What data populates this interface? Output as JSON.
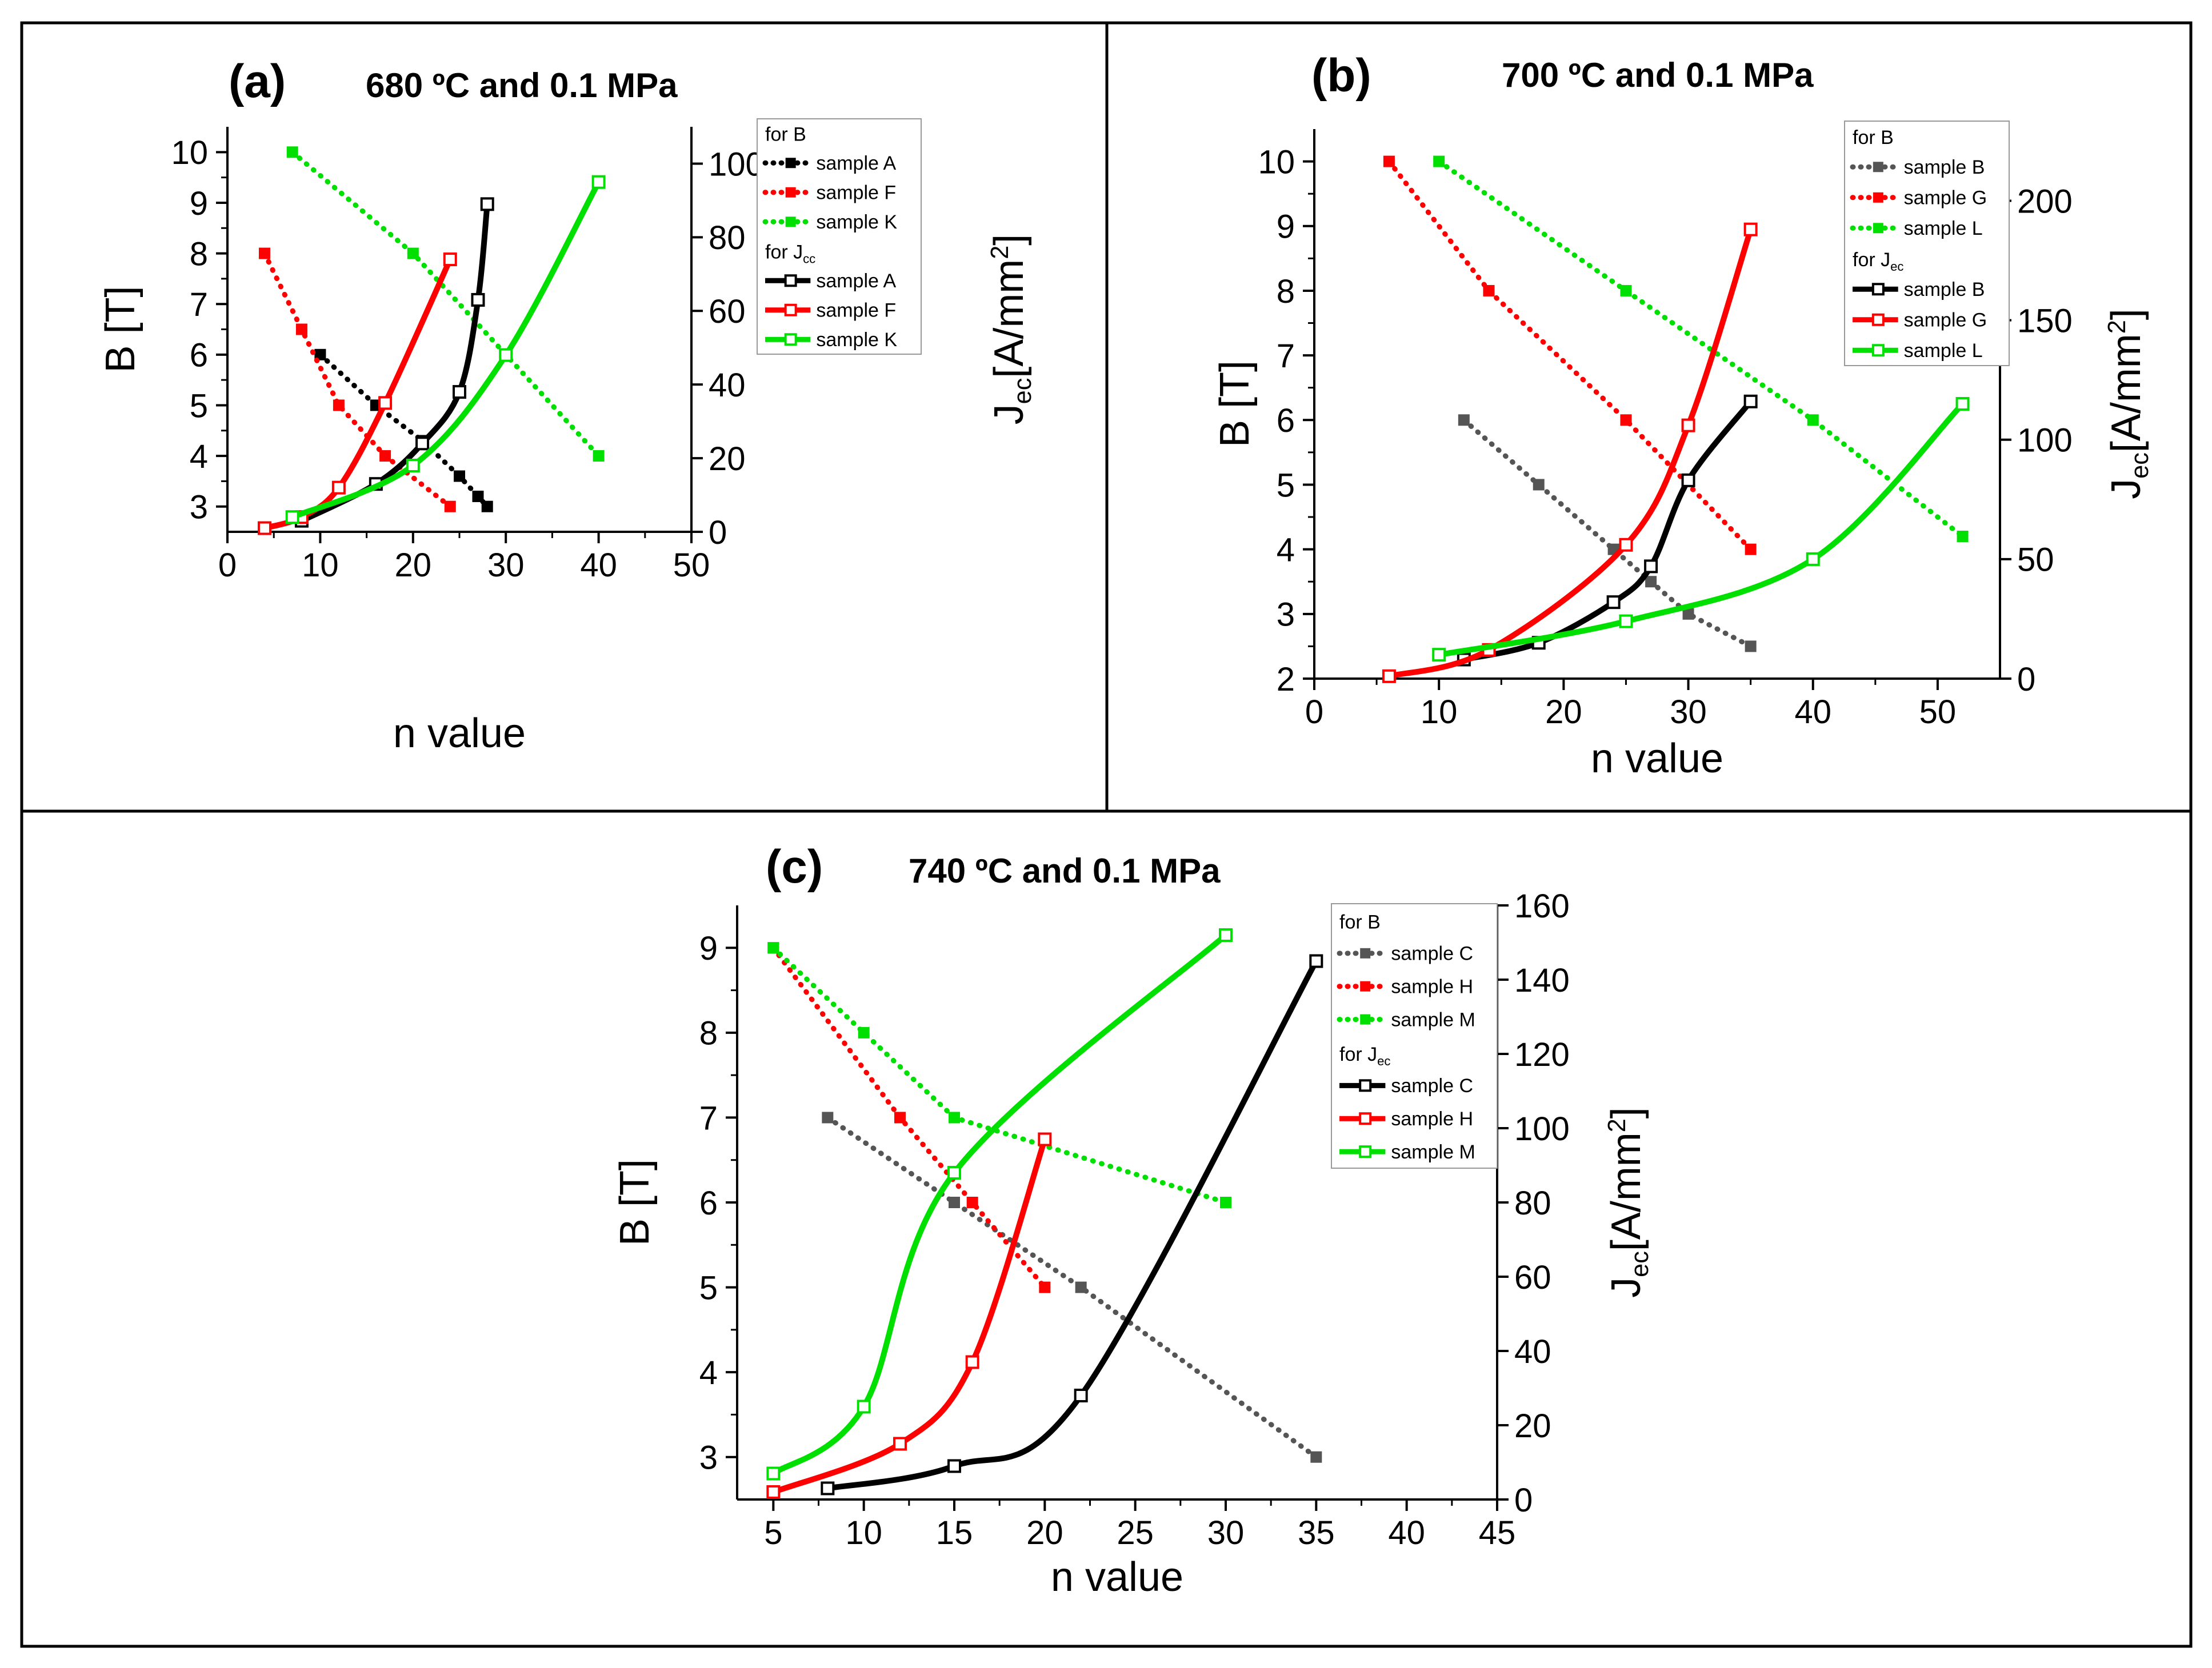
{
  "colors": {
    "black": "#000000",
    "red": "#ff0000",
    "green": "#00e000",
    "gray": "#555555"
  },
  "chart_data": [
    {
      "panel": "a",
      "type": "line",
      "panel_label": "(a)",
      "title": "680 ºC and 0.1 MPa",
      "xlabel": "n value",
      "ylabel": "B [T]",
      "ylabel2": "J",
      "ylabel2_sub": "ec",
      "ylabel2_unit": "[A/mm",
      "ylabel2_sup": "2",
      "ylabel2_end": "]",
      "xlim": [
        0,
        50
      ],
      "ylim": [
        2.5,
        10.5
      ],
      "y2lim": [
        0,
        110
      ],
      "x_ticks": [
        0,
        10,
        20,
        30,
        40,
        50
      ],
      "y_ticks": [
        3,
        4,
        5,
        6,
        7,
        8,
        9,
        10
      ],
      "y2_ticks": [
        0,
        20,
        40,
        60,
        80,
        100
      ],
      "legend": {
        "header_b": "for B",
        "header_j": "for J",
        "header_j_sub": "cc",
        "b_labels": [
          "sample A",
          "sample F",
          "sample K"
        ],
        "j_labels": [
          "sample A",
          "sample F",
          "sample K"
        ]
      },
      "series_b": [
        {
          "name": "sample A",
          "color": "black",
          "x": [
            10,
            16,
            21,
            25,
            27,
            28
          ],
          "y": [
            6,
            5,
            4.3,
            3.6,
            3.2,
            3
          ]
        },
        {
          "name": "sample F",
          "color": "red",
          "x": [
            4,
            8,
            12,
            17,
            24
          ],
          "y": [
            8,
            6.5,
            5,
            4,
            3
          ]
        },
        {
          "name": "sample K",
          "color": "green",
          "x": [
            7,
            20,
            30,
            40
          ],
          "y": [
            10,
            8,
            6,
            4
          ]
        }
      ],
      "series_j": [
        {
          "name": "sample A",
          "color": "black",
          "x": [
            8,
            16,
            21,
            25,
            27,
            28
          ],
          "y": [
            3,
            13,
            24,
            38,
            63,
            89
          ]
        },
        {
          "name": "sample F",
          "color": "red",
          "x": [
            4,
            8,
            12,
            17,
            24
          ],
          "y": [
            1,
            4,
            12,
            35,
            74
          ]
        },
        {
          "name": "sample K",
          "color": "green",
          "x": [
            7,
            20,
            30,
            40
          ],
          "y": [
            4,
            18,
            48,
            95
          ]
        }
      ]
    },
    {
      "panel": "b",
      "type": "line",
      "panel_label": "(b)",
      "title": "700 ºC and 0.1 MPa",
      "xlabel": "n value",
      "ylabel": "B [T]",
      "ylabel2": "J",
      "ylabel2_sub": "ec",
      "ylabel2_unit": "[A/mm",
      "ylabel2_sup": "2",
      "ylabel2_end": "]",
      "xlim": [
        0,
        55
      ],
      "ylim": [
        2,
        10.5
      ],
      "y2lim": [
        0,
        230
      ],
      "x_ticks": [
        0,
        10,
        20,
        30,
        40,
        50
      ],
      "y_ticks": [
        2,
        3,
        4,
        5,
        6,
        7,
        8,
        9,
        10
      ],
      "y2_ticks": [
        0,
        50,
        100,
        150,
        200
      ],
      "legend": {
        "header_b": "for B",
        "header_j": "for J",
        "header_j_sub": "ec",
        "b_labels": [
          "sample B",
          "sample G",
          "sample L"
        ],
        "j_labels": [
          "sample B",
          "sample G",
          "sample L"
        ]
      },
      "series_b": [
        {
          "name": "sample B",
          "color": "gray",
          "x": [
            12,
            18,
            24,
            27,
            30,
            35
          ],
          "y": [
            6,
            5,
            4,
            3.5,
            3,
            2.5
          ]
        },
        {
          "name": "sample G",
          "color": "red",
          "x": [
            6,
            14,
            25,
            35
          ],
          "y": [
            10,
            8,
            6,
            4
          ]
        },
        {
          "name": "sample L",
          "color": "green",
          "x": [
            10,
            25,
            40,
            52
          ],
          "y": [
            10,
            8,
            6,
            4.2
          ]
        }
      ],
      "series_j": [
        {
          "name": "sample B",
          "color": "black",
          "x": [
            12,
            18,
            24,
            27,
            30,
            35
          ],
          "y": [
            8,
            15,
            32,
            47,
            83,
            116
          ]
        },
        {
          "name": "sample G",
          "color": "red",
          "x": [
            6,
            14,
            25,
            30,
            35
          ],
          "y": [
            1,
            12,
            56,
            106,
            188
          ]
        },
        {
          "name": "sample L",
          "color": "green",
          "x": [
            10,
            25,
            40,
            52
          ],
          "y": [
            10,
            24,
            50,
            115
          ]
        }
      ]
    },
    {
      "panel": "c",
      "type": "line",
      "panel_label": "(c)",
      "title": "740 ºC and 0.1 MPa",
      "xlabel": "n value",
      "ylabel": "B [T]",
      "ylabel2": "J",
      "ylabel2_sub": "ec",
      "ylabel2_unit": "[A/mm",
      "ylabel2_sup": "2",
      "ylabel2_end": "]",
      "xlim": [
        3,
        45
      ],
      "ylim": [
        2.5,
        9.5
      ],
      "y2lim": [
        0,
        160
      ],
      "x_ticks": [
        5,
        10,
        15,
        20,
        25,
        30,
        35,
        40,
        45
      ],
      "y_ticks": [
        3,
        4,
        5,
        6,
        7,
        8,
        9
      ],
      "y2_ticks": [
        0,
        20,
        40,
        60,
        80,
        100,
        120,
        140,
        160
      ],
      "legend": {
        "header_b": "for B",
        "header_j": "for J",
        "header_j_sub": "ec",
        "b_labels": [
          "sample C",
          "sample H",
          "sample M"
        ],
        "j_labels": [
          "sample C",
          "sample H",
          "sample M"
        ]
      },
      "series_b": [
        {
          "name": "sample C",
          "color": "gray",
          "x": [
            8,
            15,
            22,
            35
          ],
          "y": [
            7,
            6,
            5,
            3
          ]
        },
        {
          "name": "sample H",
          "color": "red",
          "x": [
            5,
            12,
            16,
            20
          ],
          "y": [
            9,
            7,
            6,
            5
          ]
        },
        {
          "name": "sample M",
          "color": "green",
          "x": [
            5,
            10,
            15,
            30
          ],
          "y": [
            9,
            8,
            7,
            6
          ]
        }
      ],
      "series_j": [
        {
          "name": "sample C",
          "color": "black",
          "x": [
            8,
            15,
            22,
            35
          ],
          "y": [
            3,
            9,
            28,
            145
          ]
        },
        {
          "name": "sample H",
          "color": "red",
          "x": [
            5,
            12,
            16,
            20
          ],
          "y": [
            2,
            15,
            37,
            97
          ]
        },
        {
          "name": "sample M",
          "color": "green",
          "x": [
            5,
            10,
            15,
            30
          ],
          "y": [
            7,
            25,
            88,
            152
          ]
        }
      ]
    }
  ]
}
